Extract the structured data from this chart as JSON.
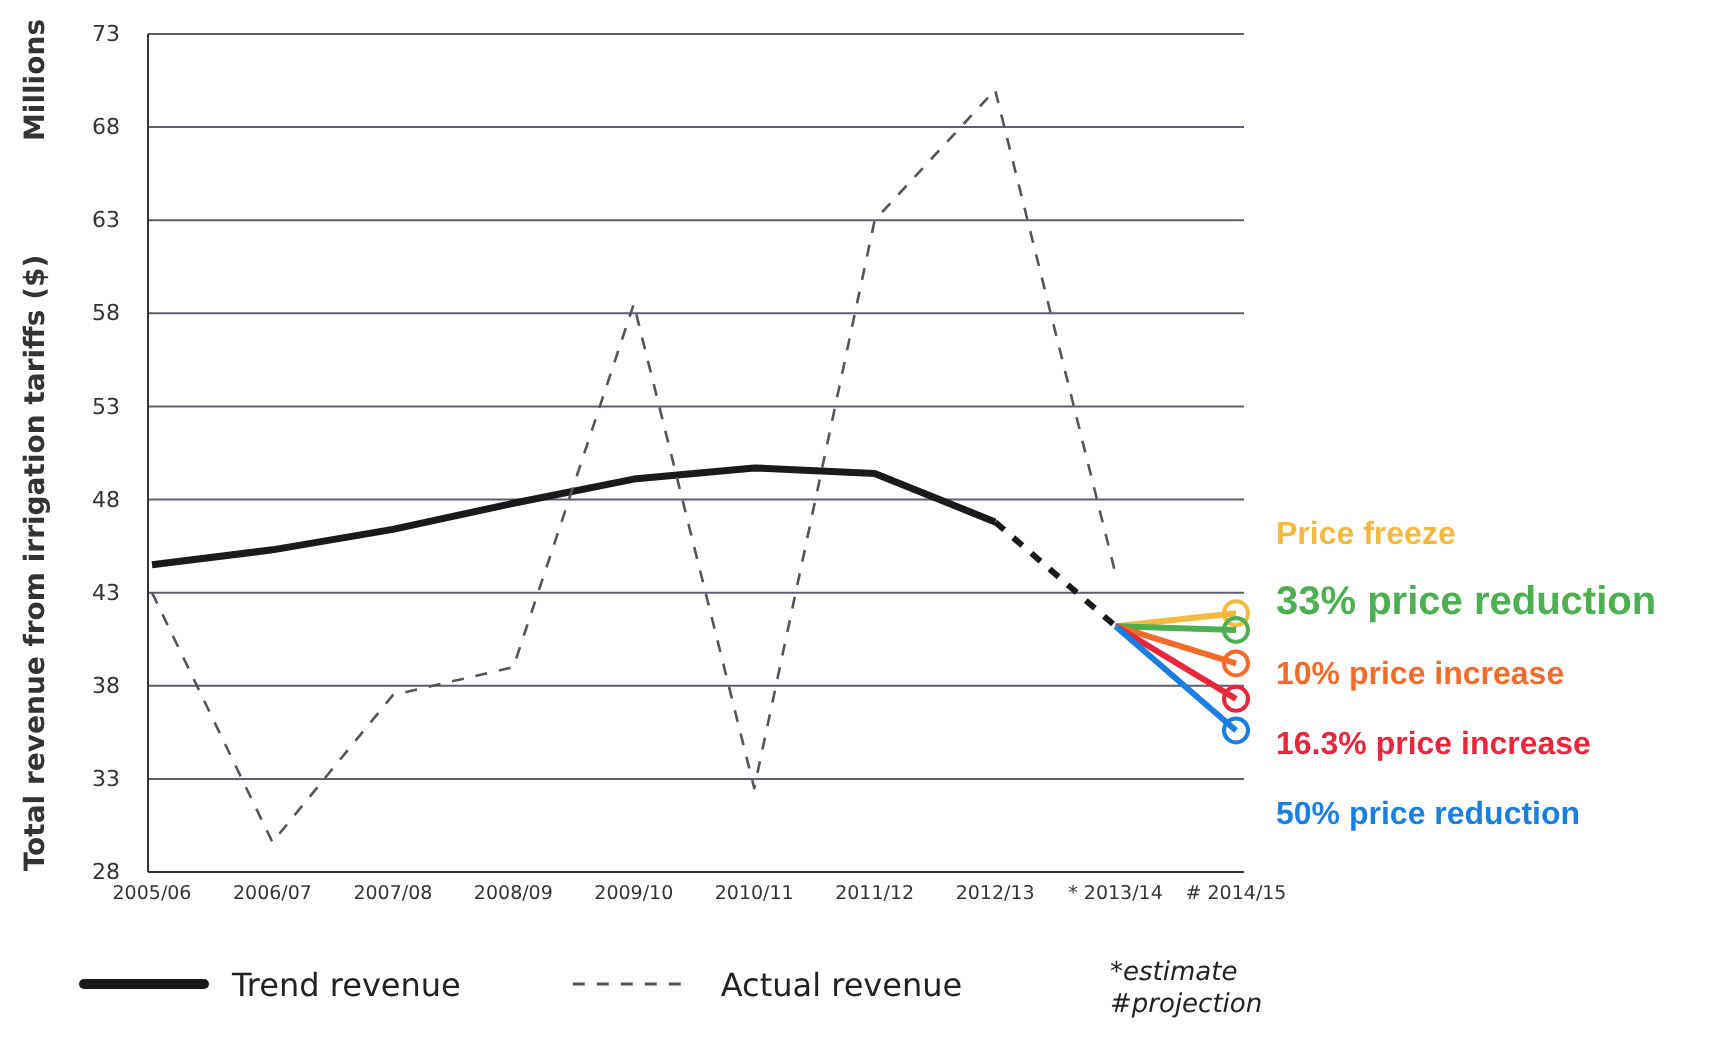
{
  "chart_data": {
    "type": "line",
    "ylabel": "Total revenue from irrigation tariffs ($)",
    "categories": [
      "2005/06",
      "2006/07",
      "2007/08",
      "2008/09",
      "2009/10",
      "2010/11",
      "2011/12",
      "2012/13",
      "* 2013/14",
      "# 2014/15"
    ],
    "ylim": [
      28,
      73
    ],
    "yticks": [
      28,
      33,
      38,
      43,
      48,
      53,
      58,
      63,
      68,
      73
    ],
    "grid": "y",
    "legend": "bottom",
    "annotations": [
      "Millions",
      "*estimate",
      "#projection"
    ],
    "series": [
      {
        "name": "Trend revenue",
        "color": "#1a1a1a",
        "line_style": "solid",
        "values": [
          44.5,
          45.3,
          46.4,
          47.8,
          49.1,
          49.7,
          49.4,
          46.8,
          null,
          null
        ]
      },
      {
        "color": "#1a1a1a",
        "line_style": "dashed",
        "values": [
          null,
          null,
          null,
          null,
          null,
          null,
          null,
          46.8,
          41.2,
          null
        ]
      },
      {
        "name": "Actual revenue",
        "color": "#555555",
        "line_style": "dashed",
        "values": [
          43,
          29.6,
          37.5,
          39,
          58.5,
          32.5,
          63,
          70,
          44,
          null
        ]
      },
      {
        "name": "Price freeze",
        "color": "#f5b940",
        "line_style": "solid",
        "marker": "circle",
        "values": [
          null,
          null,
          null,
          null,
          null,
          null,
          null,
          null,
          41.2,
          41.9
        ]
      },
      {
        "name": "33% price reduction",
        "color": "#4caf50",
        "line_style": "solid",
        "marker": "circle",
        "values": [
          null,
          null,
          null,
          null,
          null,
          null,
          null,
          null,
          41.2,
          41.0
        ]
      },
      {
        "name": "10% price increase",
        "color": "#f26b2a",
        "line_style": "solid",
        "marker": "circle",
        "values": [
          null,
          null,
          null,
          null,
          null,
          null,
          null,
          null,
          41.2,
          39.2
        ]
      },
      {
        "name": "16.3% price increase",
        "color": "#e8283a",
        "line_style": "solid",
        "marker": "circle",
        "values": [
          null,
          null,
          null,
          null,
          null,
          null,
          null,
          null,
          41.2,
          37.3
        ]
      },
      {
        "name": "50% price reduction",
        "color": "#1a7fe0",
        "line_style": "solid",
        "marker": "circle",
        "values": [
          null,
          null,
          null,
          null,
          null,
          null,
          null,
          null,
          41.2,
          35.6
        ]
      }
    ]
  }
}
